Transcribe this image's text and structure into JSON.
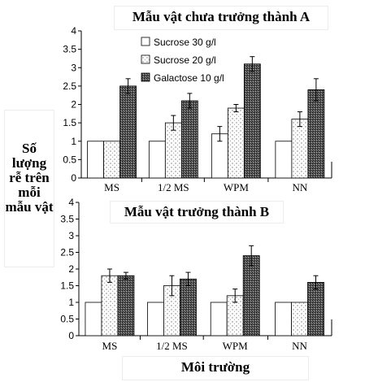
{
  "ylabel": "Số lượng rễ trên mỗi mẫu vật",
  "xlabel": "Môi trường",
  "chart_data": [
    {
      "type": "bar",
      "title": "Mẫu vật chưa trưởng thành A",
      "categories": [
        "MS",
        "1/2 MS",
        "WPM",
        "NN"
      ],
      "ylim": [
        0,
        4
      ],
      "yticks": [
        "0",
        "0.5",
        "1",
        "1.5",
        "2",
        "2.5",
        "3",
        "3.5",
        "4"
      ],
      "legend_position": "top-left",
      "series": [
        {
          "name": "Sucrose 30 g/l",
          "values": [
            1.0,
            1.0,
            1.2,
            1.0
          ],
          "errors": [
            0,
            0,
            0.2,
            0
          ]
        },
        {
          "name": "Sucrose 20 g/l",
          "values": [
            1.0,
            1.5,
            1.9,
            1.6
          ],
          "errors": [
            0,
            0.2,
            0.1,
            0.2
          ]
        },
        {
          "name": "Galactose 10 g/l",
          "values": [
            2.5,
            2.1,
            3.1,
            2.4
          ],
          "errors": [
            0.2,
            0.2,
            0.2,
            0.3
          ]
        }
      ]
    },
    {
      "type": "bar",
      "title": "Mẫu vật trưởng thành B",
      "categories": [
        "MS",
        "1/2 MS",
        "WPM",
        "NN"
      ],
      "ylim": [
        0,
        4
      ],
      "yticks": [
        "0",
        "0.5",
        "1",
        "1.5",
        "2",
        "2.5",
        "3",
        "3.5",
        "4"
      ],
      "series": [
        {
          "name": "Sucrose 30 g/l",
          "values": [
            1.0,
            1.0,
            1.0,
            1.0
          ],
          "errors": [
            0,
            0,
            0,
            0
          ]
        },
        {
          "name": "Sucrose 20 g/l",
          "values": [
            1.8,
            1.5,
            1.2,
            1.0
          ],
          "errors": [
            0.2,
            0.3,
            0.2,
            0
          ]
        },
        {
          "name": "Galactose 10 g/l",
          "values": [
            1.8,
            1.7,
            2.4,
            1.6
          ],
          "errors": [
            0.1,
            0.2,
            0.3,
            0.2
          ]
        }
      ]
    }
  ],
  "colors": {
    "sucrose30": "#ffffff",
    "sucrose20": "#f2f2f2",
    "galactose10": "#444444"
  }
}
